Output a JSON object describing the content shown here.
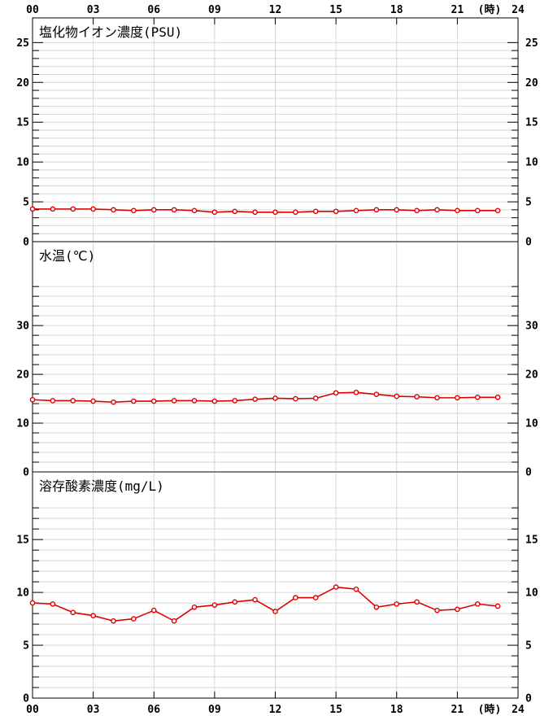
{
  "figure": {
    "bg_color": "#ffffff",
    "line_color": "#dd0000",
    "grid_color": "#d6d6d6",
    "axis_color": "#000000",
    "hour_labels": [
      "00",
      "03",
      "06",
      "09",
      "12",
      "15",
      "18",
      "21"
    ],
    "time_unit_label": "(時)",
    "end_hour_label": "24",
    "hours_start": 0,
    "hours_end": 24,
    "hour_tick_step": 3
  },
  "chart_data": [
    {
      "type": "line",
      "title": "塩化物イオン濃度(PSU)",
      "xlabel": "(時)",
      "ylabel": "PSU",
      "x": [
        0,
        1,
        2,
        3,
        4,
        5,
        6,
        7,
        8,
        9,
        10,
        11,
        12,
        13,
        14,
        15,
        16,
        17,
        18,
        19,
        20,
        21,
        22,
        23
      ],
      "values": [
        4.1,
        4.1,
        4.1,
        4.1,
        4.0,
        3.9,
        4.0,
        4.0,
        3.9,
        3.7,
        3.8,
        3.7,
        3.7,
        3.7,
        3.8,
        3.8,
        3.9,
        4.0,
        4.0,
        3.9,
        4.0,
        3.9,
        3.9,
        3.9
      ],
      "ylim": [
        0,
        28.1
      ],
      "ytick_labels": [
        25,
        20,
        15,
        10,
        5,
        0
      ],
      "minor_step": 1,
      "tick_max": 25,
      "xlim": [
        0,
        24
      ],
      "grid": true,
      "legend": null,
      "marker": "open-circle"
    },
    {
      "type": "line",
      "title": "水温(℃)",
      "xlabel": "(時)",
      "ylabel": "℃",
      "x": [
        0,
        1,
        2,
        3,
        4,
        5,
        6,
        7,
        8,
        9,
        10,
        11,
        12,
        13,
        14,
        15,
        16,
        17,
        18,
        19,
        20,
        21,
        22,
        23
      ],
      "values": [
        14.8,
        14.6,
        14.6,
        14.5,
        14.3,
        14.5,
        14.5,
        14.6,
        14.6,
        14.5,
        14.6,
        14.9,
        15.1,
        15.0,
        15.1,
        16.2,
        16.3,
        15.9,
        15.5,
        15.4,
        15.2,
        15.2,
        15.3,
        15.3
      ],
      "ylim": [
        0,
        47.2
      ],
      "ytick_labels": [
        30,
        20,
        10,
        0
      ],
      "minor_step": 2,
      "tick_max": 38,
      "xlim": [
        0,
        24
      ],
      "grid": true,
      "legend": null,
      "marker": "open-circle"
    },
    {
      "type": "line",
      "title": "溶存酸素濃度(mg/L)",
      "xlabel": "(時)",
      "ylabel": "mg/L",
      "x": [
        0,
        1,
        2,
        3,
        4,
        5,
        6,
        7,
        8,
        9,
        10,
        11,
        12,
        13,
        14,
        15,
        16,
        17,
        18,
        19,
        20,
        21,
        22,
        23
      ],
      "values": [
        9.0,
        8.9,
        8.1,
        7.8,
        7.3,
        7.5,
        8.3,
        7.3,
        8.6,
        8.8,
        9.1,
        9.3,
        8.2,
        9.5,
        9.5,
        10.5,
        10.3,
        8.6,
        8.9,
        9.1,
        8.3,
        8.4,
        8.9,
        8.7
      ],
      "ylim": [
        0,
        21.4
      ],
      "ytick_labels": [
        15,
        10,
        5,
        0
      ],
      "minor_step": 1,
      "tick_max": 18,
      "xlim": [
        0,
        24
      ],
      "grid": true,
      "legend": null,
      "marker": "open-circle"
    }
  ]
}
